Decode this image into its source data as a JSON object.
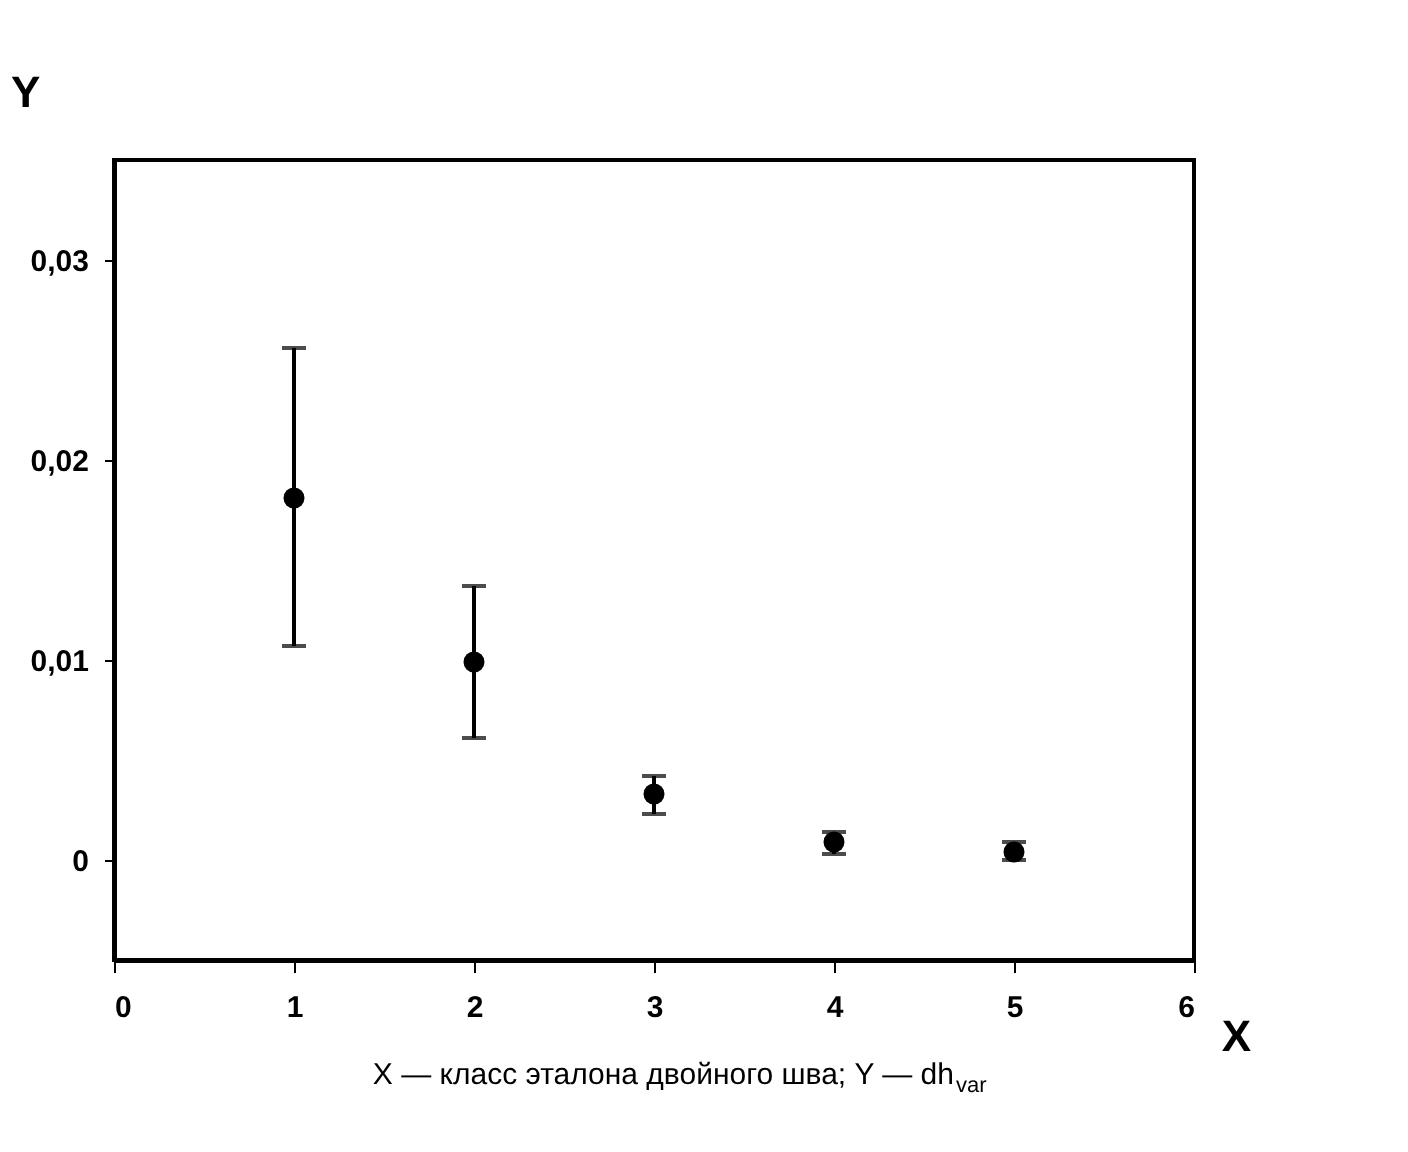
{
  "chart_data": {
    "type": "scatter",
    "xlabel": "X",
    "ylabel": "Y",
    "annotations": [
      "X — класс эталона двойного шва; Y — dh$_{var}$"
    ],
    "x": [
      1,
      2,
      3,
      4,
      5
    ],
    "series": [
      {
        "color": "#000000",
        "values": [
          0.0181,
          0.0099,
          0.0033,
          0.0009,
          0.0004
        ],
        "errors": [
          [
            0.0107,
            0.0256
          ],
          [
            0.0061,
            0.0137
          ],
          [
            0.0023,
            0.0042
          ],
          [
            0.0003,
            0.0014
          ],
          [
            0.0,
            0.0009
          ]
        ]
      }
    ],
    "marker": "circle",
    "grid": false,
    "xlim": [
      0,
      6
    ],
    "xticks": [
      0,
      1,
      2,
      3,
      4,
      5,
      6
    ],
    "ylim": [
      -0.005,
      0.035
    ],
    "yticks": [
      {
        "value": 0,
        "label": "0"
      },
      {
        "value": 0.01,
        "label": "0,01"
      },
      {
        "value": 0.02,
        "label": "0,02"
      },
      {
        "value": 0.03,
        "label": "0,03"
      }
    ]
  }
}
